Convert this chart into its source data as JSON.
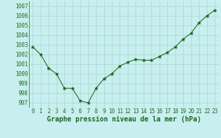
{
  "x": [
    0,
    1,
    2,
    3,
    4,
    5,
    6,
    7,
    8,
    9,
    10,
    11,
    12,
    13,
    14,
    15,
    16,
    17,
    18,
    19,
    20,
    21,
    22,
    23
  ],
  "y": [
    1002.8,
    1002.0,
    1000.6,
    1000.0,
    998.5,
    998.5,
    997.2,
    997.0,
    998.5,
    999.5,
    1000.0,
    1000.8,
    1001.2,
    1001.5,
    1001.4,
    1001.4,
    1001.8,
    1002.2,
    1002.8,
    1003.6,
    1004.2,
    1005.3,
    1006.0,
    1006.6
  ],
  "line_color": "#1a6b1a",
  "marker": "*",
  "marker_color": "#1a6b1a",
  "bg_color": "#c8eef0",
  "grid_color": "#a0d8cc",
  "xlabel": "Graphe pression niveau de la mer (hPa)",
  "xlabel_color": "#1a6b1a",
  "tick_color": "#1a6b1a",
  "yticks": [
    997,
    998,
    999,
    1000,
    1001,
    1002,
    1003,
    1004,
    1005,
    1006,
    1007
  ],
  "ylim": [
    996.5,
    1007.5
  ],
  "xlim": [
    -0.5,
    23.5
  ],
  "tick_fontsize": 5.5,
  "xlabel_fontsize": 7.0,
  "linewidth": 0.8,
  "markersize": 3.5
}
